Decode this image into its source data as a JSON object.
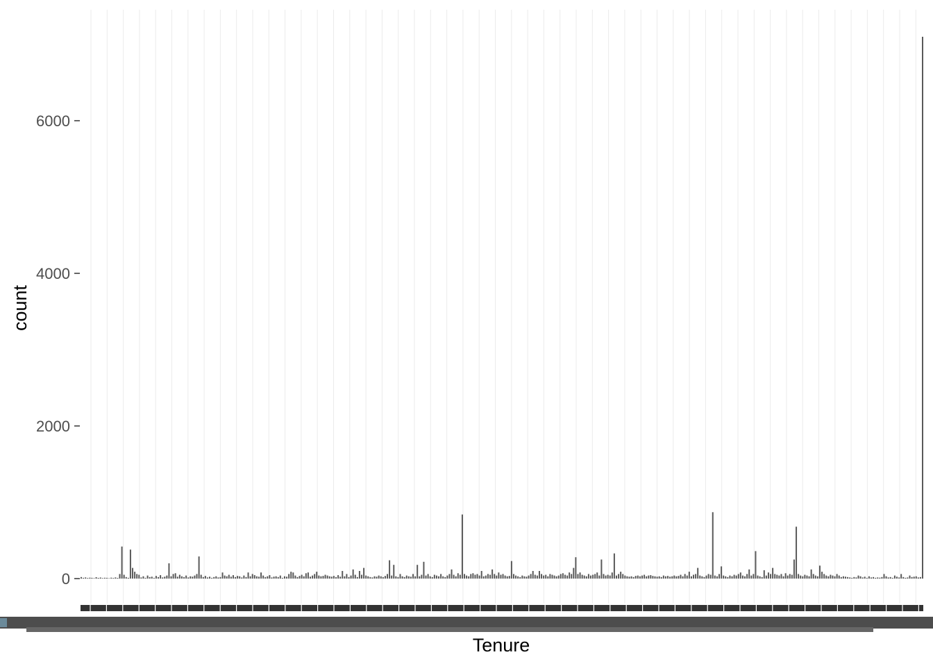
{
  "chart_data": {
    "type": "bar",
    "title": "",
    "xlabel": "Tenure",
    "ylabel": "count",
    "ylim": [
      0,
      7300
    ],
    "yticks": [
      0,
      2000,
      4000,
      6000
    ],
    "ytick_labels": [
      "0",
      "2000",
      "4000",
      "6000"
    ],
    "grid": true,
    "legend": "none",
    "bar_color": "#595959",
    "notes_x": "Categorical x axis with several hundred distinct Tenure values; the rotated tick labels are too dense to read.",
    "values": [
      20,
      10,
      15,
      8,
      12,
      10,
      6,
      18,
      9,
      14,
      7,
      11,
      10,
      5,
      12,
      8,
      15,
      9,
      60,
      420,
      50,
      20,
      10,
      380,
      140,
      90,
      60,
      50,
      15,
      30,
      10,
      40,
      20,
      25,
      10,
      35,
      20,
      45,
      15,
      25,
      40,
      200,
      30,
      60,
      70,
      25,
      50,
      30,
      20,
      40,
      15,
      30,
      25,
      40,
      60,
      290,
      50,
      20,
      35,
      15,
      25,
      10,
      20,
      30,
      15,
      20,
      80,
      40,
      30,
      50,
      25,
      45,
      20,
      35,
      30,
      15,
      40,
      20,
      80,
      30,
      60,
      45,
      30,
      25,
      80,
      40,
      20,
      30,
      45,
      15,
      25,
      30,
      20,
      40,
      10,
      30,
      25,
      60,
      90,
      80,
      40,
      20,
      35,
      50,
      30,
      70,
      80,
      25,
      40,
      60,
      90,
      40,
      30,
      35,
      50,
      40,
      30,
      25,
      35,
      20,
      45,
      25,
      100,
      30,
      60,
      20,
      40,
      120,
      50,
      20,
      100,
      50,
      140,
      40,
      30,
      20,
      15,
      30,
      25,
      40,
      30,
      20,
      35,
      60,
      240,
      40,
      180,
      30,
      20,
      60,
      30,
      20,
      40,
      30,
      25,
      60,
      30,
      180,
      30,
      50,
      220,
      40,
      60,
      30,
      20,
      50,
      40,
      30,
      60,
      30,
      20,
      40,
      60,
      120,
      50,
      30,
      70,
      50,
      840,
      60,
      40,
      30,
      60,
      70,
      50,
      60,
      40,
      100,
      30,
      40,
      60,
      50,
      120,
      60,
      40,
      80,
      50,
      60,
      40,
      30,
      35,
      230,
      60,
      40,
      30,
      20,
      40,
      30,
      25,
      40,
      60,
      100,
      50,
      40,
      100,
      60,
      40,
      50,
      30,
      60,
      50,
      40,
      30,
      40,
      60,
      70,
      50,
      40,
      80,
      60,
      140,
      280,
      60,
      80,
      50,
      40,
      30,
      60,
      40,
      50,
      60,
      80,
      40,
      250,
      60,
      40,
      50,
      40,
      80,
      330,
      40,
      60,
      90,
      60,
      40,
      30,
      25,
      30,
      20,
      35,
      40,
      30,
      40,
      50,
      30,
      40,
      45,
      35,
      30,
      25,
      30,
      20,
      40,
      30,
      35,
      25,
      30,
      40,
      30,
      35,
      50,
      30,
      60,
      40,
      90,
      30,
      50,
      60,
      140,
      40,
      30,
      20,
      40,
      60,
      50,
      870,
      40,
      30,
      60,
      160,
      40,
      30,
      20,
      40,
      30,
      50,
      40,
      60,
      80,
      40,
      30,
      60,
      120,
      40,
      60,
      360,
      40,
      30,
      20,
      110,
      40,
      80,
      60,
      140,
      60,
      50,
      40,
      60,
      30,
      70,
      40,
      60,
      50,
      250,
      680,
      60,
      40,
      30,
      50,
      40,
      30,
      120,
      60,
      40,
      30,
      170,
      90,
      60,
      40,
      30,
      50,
      40,
      30,
      60,
      40,
      20,
      30,
      25,
      20,
      15,
      10,
      20,
      15,
      40,
      30,
      15,
      25,
      10,
      30,
      15,
      20,
      10,
      15,
      12,
      20,
      60,
      30,
      15,
      20,
      10,
      40,
      25,
      15,
      60,
      20,
      10,
      15,
      40,
      20,
      25,
      30,
      15,
      20,
      7100
    ]
  }
}
